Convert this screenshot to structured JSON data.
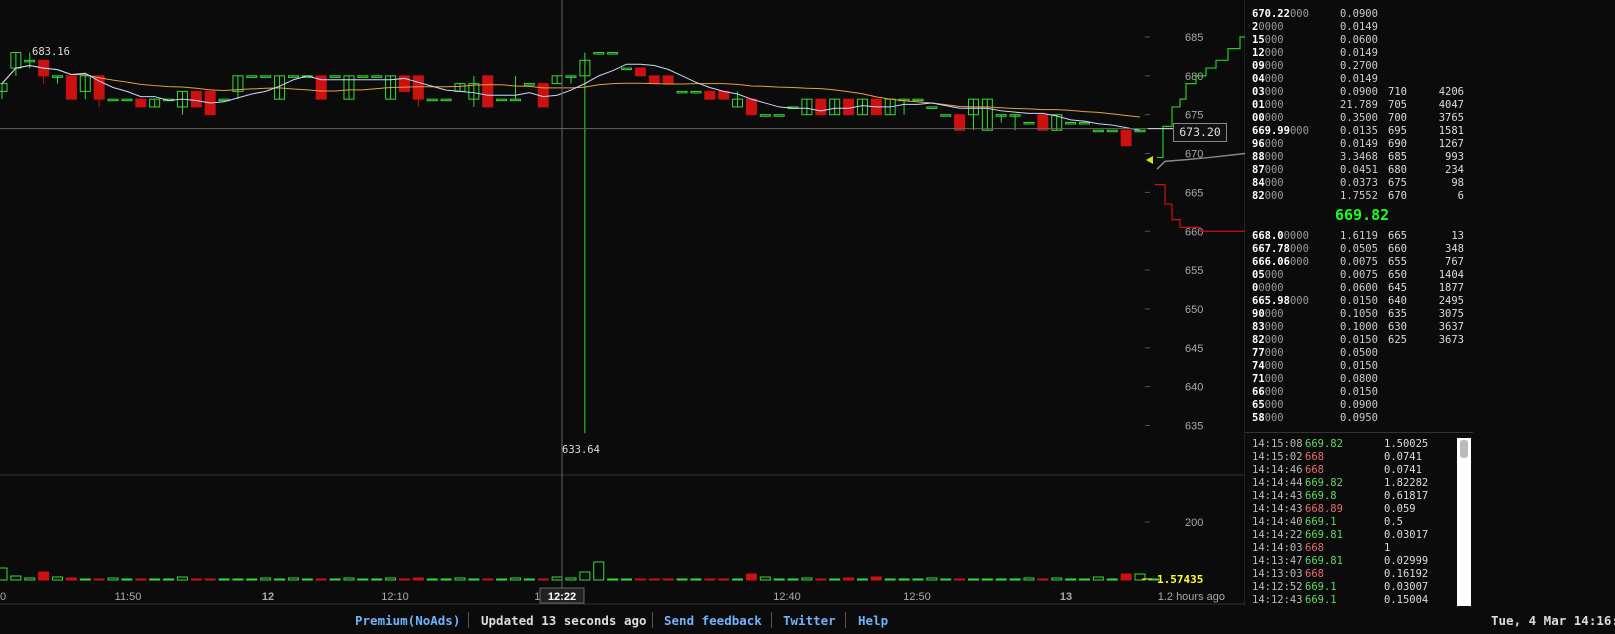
{
  "chart": {
    "y_ticks": [
      "685",
      "680",
      "675",
      "670",
      "665",
      "660",
      "655",
      "650",
      "645",
      "640",
      "635"
    ],
    "volume_tick": "200",
    "x_ticks": [
      {
        "label": "0",
        "bold": false
      },
      {
        "label": "11:50",
        "bold": false
      },
      {
        "label": "12",
        "bold": true
      },
      {
        "label": "12:10",
        "bold": false
      },
      {
        "label": "12:",
        "bold": false
      },
      {
        "label": "12:40",
        "bold": false
      },
      {
        "label": "12:50",
        "bold": false
      },
      {
        "label": "13",
        "bold": true
      }
    ],
    "crosshair_time": "12:22",
    "crosshair_price": "673.20",
    "high_label": "683.16",
    "low_label": "633.64",
    "volume_label": "1.57435",
    "time_ago": "1.2 hours ago",
    "colors": {
      "up": "#33dd33",
      "down": "#cc1111",
      "sma_fast": "#c8d8ff",
      "sma_slow": "#e8a040",
      "grid": "#222",
      "axis": "#444"
    },
    "chart_data": {
      "type": "candlestick",
      "y_range": [
        630,
        688
      ],
      "candles": [
        {
          "o": 678,
          "c": 679,
          "h": 679,
          "l": 677
        },
        {
          "o": 681,
          "c": 683,
          "h": 683,
          "l": 680
        },
        {
          "o": 682,
          "c": 682,
          "h": 683,
          "l": 681
        },
        {
          "o": 682,
          "c": 680,
          "h": 682,
          "l": 679
        },
        {
          "o": 680,
          "c": 680,
          "h": 680,
          "l": 679
        },
        {
          "o": 680,
          "c": 677,
          "h": 680,
          "l": 677
        },
        {
          "o": 678,
          "c": 680,
          "h": 680,
          "l": 677
        },
        {
          "o": 680,
          "c": 677,
          "h": 680,
          "l": 676
        },
        {
          "o": 677,
          "c": 677,
          "h": 677,
          "l": 677
        },
        {
          "o": 677,
          "c": 677,
          "h": 677,
          "l": 677
        },
        {
          "o": 677,
          "c": 676,
          "h": 677,
          "l": 676
        },
        {
          "o": 676,
          "c": 677,
          "h": 677,
          "l": 676
        },
        {
          "o": 677,
          "c": 677,
          "h": 677,
          "l": 677
        },
        {
          "o": 676,
          "c": 678,
          "h": 678,
          "l": 675
        },
        {
          "o": 678,
          "c": 676,
          "h": 678,
          "l": 676
        },
        {
          "o": 678,
          "c": 675,
          "h": 678,
          "l": 675
        },
        {
          "o": 677,
          "c": 677,
          "h": 677,
          "l": 677
        },
        {
          "o": 678,
          "c": 680,
          "h": 680,
          "l": 677
        },
        {
          "o": 680,
          "c": 680,
          "h": 680,
          "l": 680
        },
        {
          "o": 680,
          "c": 680,
          "h": 680,
          "l": 680
        },
        {
          "o": 677,
          "c": 680,
          "h": 680,
          "l": 677
        },
        {
          "o": 680,
          "c": 680,
          "h": 680,
          "l": 680
        },
        {
          "o": 680,
          "c": 680,
          "h": 680,
          "l": 680
        },
        {
          "o": 680,
          "c": 677,
          "h": 680,
          "l": 677
        },
        {
          "o": 680,
          "c": 680,
          "h": 680,
          "l": 680
        },
        {
          "o": 677,
          "c": 680,
          "h": 680,
          "l": 677
        },
        {
          "o": 680,
          "c": 680,
          "h": 680,
          "l": 680
        },
        {
          "o": 680,
          "c": 680,
          "h": 680,
          "l": 680
        },
        {
          "o": 677,
          "c": 680,
          "h": 680,
          "l": 677
        },
        {
          "o": 680,
          "c": 678,
          "h": 680,
          "l": 678
        },
        {
          "o": 680,
          "c": 677,
          "h": 680,
          "l": 676
        },
        {
          "o": 677,
          "c": 677,
          "h": 677,
          "l": 677
        },
        {
          "o": 677,
          "c": 677,
          "h": 677,
          "l": 677
        },
        {
          "o": 678,
          "c": 679,
          "h": 679,
          "l": 678
        },
        {
          "o": 677,
          "c": 679,
          "h": 680,
          "l": 676
        },
        {
          "o": 680,
          "c": 676,
          "h": 680,
          "l": 676
        },
        {
          "o": 677,
          "c": 677,
          "h": 677,
          "l": 677
        },
        {
          "o": 677,
          "c": 677,
          "h": 680,
          "l": 677
        },
        {
          "o": 679,
          "c": 679,
          "h": 679,
          "l": 679
        },
        {
          "o": 679,
          "c": 676,
          "h": 679,
          "l": 676
        },
        {
          "o": 679,
          "c": 680,
          "h": 680,
          "l": 679
        },
        {
          "o": 680,
          "c": 680,
          "h": 680,
          "l": 679
        },
        {
          "o": 680,
          "c": 682,
          "h": 683,
          "l": 634
        },
        {
          "o": 683,
          "c": 683,
          "h": 683,
          "l": 683
        },
        {
          "o": 683,
          "c": 683,
          "h": 683,
          "l": 683
        },
        {
          "o": 681,
          "c": 681,
          "h": 681,
          "l": 681
        },
        {
          "o": 681,
          "c": 680,
          "h": 681,
          "l": 680
        },
        {
          "o": 680,
          "c": 679,
          "h": 680,
          "l": 679
        },
        {
          "o": 680,
          "c": 679,
          "h": 680,
          "l": 679
        },
        {
          "o": 678,
          "c": 678,
          "h": 678,
          "l": 678
        },
        {
          "o": 678,
          "c": 678,
          "h": 678,
          "l": 678
        },
        {
          "o": 678,
          "c": 677,
          "h": 678,
          "l": 677
        },
        {
          "o": 678,
          "c": 677,
          "h": 678,
          "l": 677
        },
        {
          "o": 676,
          "c": 677,
          "h": 678,
          "l": 676
        },
        {
          "o": 677,
          "c": 675,
          "h": 677,
          "l": 675
        },
        {
          "o": 675,
          "c": 675,
          "h": 675,
          "l": 675
        },
        {
          "o": 675,
          "c": 675,
          "h": 675,
          "l": 675
        },
        {
          "o": 676,
          "c": 676,
          "h": 676,
          "l": 676
        },
        {
          "o": 675,
          "c": 677,
          "h": 677,
          "l": 675
        },
        {
          "o": 677,
          "c": 675,
          "h": 677,
          "l": 675
        },
        {
          "o": 675,
          "c": 677,
          "h": 677,
          "l": 675
        },
        {
          "o": 677,
          "c": 675,
          "h": 677,
          "l": 675
        },
        {
          "o": 675,
          "c": 677,
          "h": 677,
          "l": 675
        },
        {
          "o": 677,
          "c": 675,
          "h": 677,
          "l": 675
        },
        {
          "o": 675,
          "c": 677,
          "h": 677,
          "l": 675
        },
        {
          "o": 677,
          "c": 677,
          "h": 677,
          "l": 675
        },
        {
          "o": 677,
          "c": 677,
          "h": 677,
          "l": 677
        },
        {
          "o": 676,
          "c": 676,
          "h": 676,
          "l": 676
        },
        {
          "o": 675,
          "c": 675,
          "h": 675,
          "l": 675
        },
        {
          "o": 675,
          "c": 673,
          "h": 675,
          "l": 673
        },
        {
          "o": 675,
          "c": 677,
          "h": 677,
          "l": 673
        },
        {
          "o": 673,
          "c": 677,
          "h": 677,
          "l": 673
        },
        {
          "o": 675,
          "c": 675,
          "h": 675,
          "l": 674
        },
        {
          "o": 675,
          "c": 675,
          "h": 675,
          "l": 673
        },
        {
          "o": 674,
          "c": 674,
          "h": 674,
          "l": 674
        },
        {
          "o": 675,
          "c": 673,
          "h": 675,
          "l": 673
        },
        {
          "o": 673,
          "c": 675,
          "h": 675,
          "l": 673
        },
        {
          "o": 674,
          "c": 674,
          "h": 674,
          "l": 674
        },
        {
          "o": 674,
          "c": 674,
          "h": 674,
          "l": 674
        },
        {
          "o": 673,
          "c": 673,
          "h": 673,
          "l": 673
        },
        {
          "o": 673,
          "c": 673,
          "h": 673,
          "l": 673
        },
        {
          "o": 673,
          "c": 671,
          "h": 673,
          "l": 671
        },
        {
          "o": 673,
          "c": 673,
          "h": 673,
          "l": 673
        }
      ],
      "volume": [
        12,
        4,
        2,
        8,
        3,
        2,
        1,
        1,
        2,
        1,
        1,
        1,
        1,
        3,
        1,
        1,
        1,
        1,
        1,
        2,
        1,
        2,
        1,
        1,
        1,
        2,
        1,
        1,
        2,
        1,
        2,
        1,
        1,
        2,
        1,
        1,
        1,
        2,
        1,
        1,
        3,
        2,
        8,
        18,
        1,
        1,
        1,
        1,
        1,
        1,
        1,
        1,
        1,
        1,
        6,
        3,
        1,
        1,
        2,
        1,
        1,
        2,
        1,
        3,
        1,
        1,
        1,
        2,
        1,
        1,
        1,
        1,
        1,
        1,
        2,
        1,
        2,
        1,
        1,
        3,
        1,
        6,
        6,
        1
      ]
    },
    "depth": {
      "asks": [
        [
          670,
          680
        ],
        [
          672,
          678
        ],
        [
          674,
          677
        ],
        [
          676,
          676
        ],
        [
          678,
          675
        ],
        [
          680,
          674
        ],
        [
          682,
          673
        ],
        [
          684,
          672
        ],
        [
          686,
          671
        ],
        [
          688,
          671
        ],
        [
          690,
          670
        ],
        [
          692,
          669
        ],
        [
          696,
          668
        ]
      ],
      "bids": [
        [
          670,
          683
        ],
        [
          675,
          682
        ],
        [
          680,
          681
        ],
        [
          685,
          680
        ],
        [
          700,
          680
        ],
        [
          720,
          680
        ],
        [
          760,
          679
        ],
        [
          800,
          679
        ]
      ]
    }
  },
  "orderbook": {
    "asks": [
      {
        "hi": "670.22",
        "lo": "000",
        "vol": "0.0900",
        "dp": "",
        "dc": ""
      },
      {
        "hi": "2",
        "lo": "0000",
        "vol": "0.0149",
        "dp": "",
        "dc": ""
      },
      {
        "hi": "15",
        "lo": "000",
        "vol": "0.0600",
        "dp": "",
        "dc": ""
      },
      {
        "hi": "12",
        "lo": "000",
        "vol": "0.0149",
        "dp": "",
        "dc": ""
      },
      {
        "hi": "09",
        "lo": "000",
        "vol": "0.2700",
        "dp": "",
        "dc": ""
      },
      {
        "hi": "04",
        "lo": "000",
        "vol": "0.0149",
        "dp": "",
        "dc": ""
      },
      {
        "hi": "03",
        "lo": "000",
        "vol": "0.0900",
        "dp": "710",
        "dc": "4206"
      },
      {
        "hi": "01",
        "lo": "000",
        "vol": "21.789",
        "dp": "705",
        "dc": "4047"
      },
      {
        "hi": "00",
        "lo": "000",
        "vol": "0.3500",
        "dp": "700",
        "dc": "3765"
      },
      {
        "hi": "669.99",
        "lo": "000",
        "vol": "0.0135",
        "dp": "695",
        "dc": "1581"
      },
      {
        "hi": "96",
        "lo": "000",
        "vol": "0.0149",
        "dp": "690",
        "dc": "1267"
      },
      {
        "hi": "88",
        "lo": "000",
        "vol": "3.3468",
        "dp": "685",
        "dc": "993"
      },
      {
        "hi": "87",
        "lo": "000",
        "vol": "0.0451",
        "dp": "680",
        "dc": "234"
      },
      {
        "hi": "84",
        "lo": "000",
        "vol": "0.0373",
        "dp": "675",
        "dc": "98"
      },
      {
        "hi": "82",
        "lo": "000",
        "vol": "1.7552",
        "dp": "670",
        "dc": "6"
      }
    ],
    "last_price": "669.82",
    "bids": [
      {
        "hi": "668.0",
        "lo": "0000",
        "vol": "1.6119",
        "dp": "665",
        "dc": "13"
      },
      {
        "hi": "667.78",
        "lo": "000",
        "vol": "0.0505",
        "dp": "660",
        "dc": "348"
      },
      {
        "hi": "666.06",
        "lo": "000",
        "vol": "0.0075",
        "dp": "655",
        "dc": "767"
      },
      {
        "hi": "05",
        "lo": "000",
        "vol": "0.0075",
        "dp": "650",
        "dc": "1404"
      },
      {
        "hi": "0",
        "lo": "0000",
        "vol": "0.0600",
        "dp": "645",
        "dc": "1877"
      },
      {
        "hi": "665.98",
        "lo": "000",
        "vol": "0.0150",
        "dp": "640",
        "dc": "2495"
      },
      {
        "hi": "90",
        "lo": "000",
        "vol": "0.1050",
        "dp": "635",
        "dc": "3075"
      },
      {
        "hi": "83",
        "lo": "000",
        "vol": "0.1000",
        "dp": "630",
        "dc": "3637"
      },
      {
        "hi": "82",
        "lo": "000",
        "vol": "0.0150",
        "dp": "625",
        "dc": "3673"
      },
      {
        "hi": "77",
        "lo": "000",
        "vol": "0.0500",
        "dp": "",
        "dc": ""
      },
      {
        "hi": "74",
        "lo": "000",
        "vol": "0.0150",
        "dp": "",
        "dc": ""
      },
      {
        "hi": "71",
        "lo": "000",
        "vol": "0.0800",
        "dp": "",
        "dc": ""
      },
      {
        "hi": "66",
        "lo": "000",
        "vol": "0.0150",
        "dp": "",
        "dc": ""
      },
      {
        "hi": "65",
        "lo": "000",
        "vol": "0.0900",
        "dp": "",
        "dc": ""
      },
      {
        "hi": "58",
        "lo": "000",
        "vol": "0.0950",
        "dp": "",
        "dc": ""
      }
    ]
  },
  "trades": [
    {
      "time": "14:15:08",
      "price": "669.82",
      "side": "buy",
      "vol": "1.50025"
    },
    {
      "time": "14:15:02",
      "price": "668",
      "side": "sell",
      "vol": "0.0741"
    },
    {
      "time": "14:14:46",
      "price": "668",
      "side": "sell",
      "vol": "0.0741"
    },
    {
      "time": "14:14:44",
      "price": "669.82",
      "side": "buy",
      "vol": "1.82282"
    },
    {
      "time": "14:14:43",
      "price": "669.8",
      "side": "buy",
      "vol": "0.61817"
    },
    {
      "time": "14:14:43",
      "price": "668.89",
      "side": "sell",
      "vol": "0.059"
    },
    {
      "time": "14:14:40",
      "price": "669.1",
      "side": "buy",
      "vol": "0.5"
    },
    {
      "time": "14:14:22",
      "price": "669.81",
      "side": "buy",
      "vol": "0.03017"
    },
    {
      "time": "14:14:03",
      "price": "668",
      "side": "sell",
      "vol": "1"
    },
    {
      "time": "14:13:47",
      "price": "669.81",
      "side": "buy",
      "vol": "0.02999"
    },
    {
      "time": "14:13:03",
      "price": "668",
      "side": "sell",
      "vol": "0.16192"
    },
    {
      "time": "14:12:52",
      "price": "669.1",
      "side": "buy",
      "vol": "0.03007"
    },
    {
      "time": "14:12:43",
      "price": "669.1",
      "side": "buy",
      "vol": "0.15004"
    }
  ],
  "footer": {
    "premium": "Premium(NoAds)",
    "updated": "Updated 13 seconds ago",
    "feedback": "Send feedback",
    "twitter": "Twitter",
    "help": "Help",
    "date": "Tue, 4 Mar 14:16:"
  }
}
